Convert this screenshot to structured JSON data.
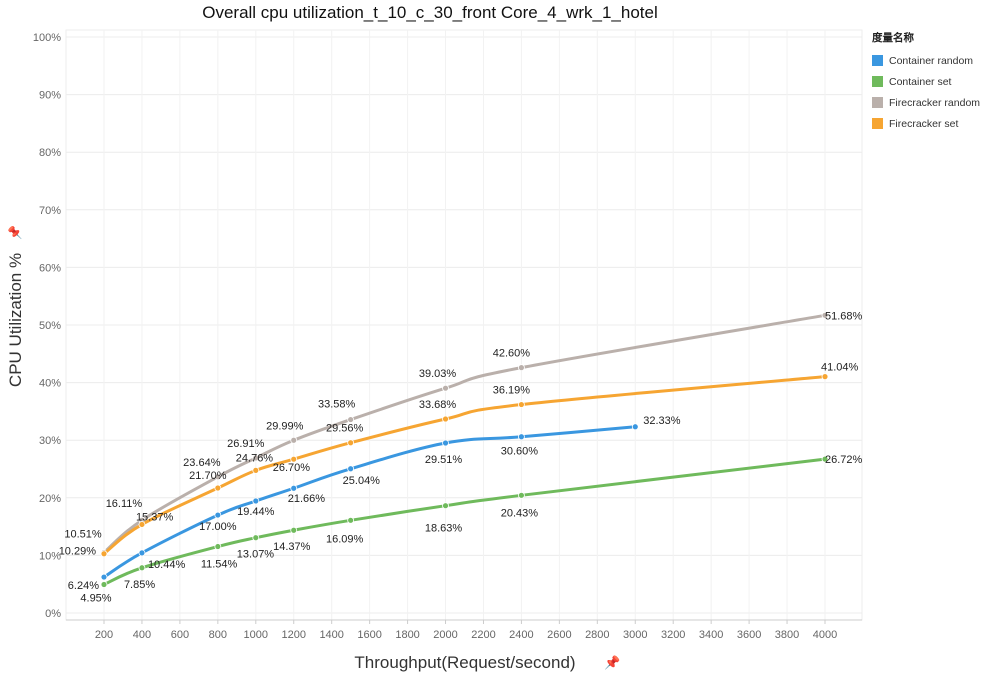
{
  "chart_data": {
    "type": "line",
    "title": "Overall cpu utilization_t_10_c_30_front Core_4_wrk_1_hotel",
    "xlabel": "Throughput(Request/second)",
    "ylabel": "CPU Utilization %",
    "xlim": [
      0,
      4200
    ],
    "ylim": [
      0,
      100
    ],
    "x_ticks": [
      "200",
      "400",
      "600",
      "800",
      "1000",
      "1200",
      "1400",
      "1600",
      "1800",
      "2000",
      "2200",
      "2400",
      "2600",
      "2800",
      "3000",
      "3200",
      "3400",
      "3600",
      "3800",
      "4000"
    ],
    "y_ticks": [
      "0%",
      "10%",
      "20%",
      "30%",
      "40%",
      "50%",
      "60%",
      "70%",
      "80%",
      "90%",
      "100%"
    ],
    "grid": true,
    "legend_position": "top-right",
    "legend_title": "度量名称",
    "series": [
      {
        "name": "Container random",
        "color": "#3a97e0",
        "x": [
          200,
          400,
          800,
          1000,
          1200,
          1500,
          2000,
          2400,
          3000
        ],
        "y": [
          6.24,
          10.44,
          17.0,
          19.44,
          21.66,
          25.04,
          29.51,
          30.6,
          32.33
        ],
        "labels": [
          "6.24%",
          "10.44%",
          "17.00%",
          "19.44%",
          "21.66%",
          "25.04%",
          "29.51%",
          "30.60%",
          "32.33%"
        ]
      },
      {
        "name": "Container set",
        "color": "#6fba5c",
        "x": [
          200,
          400,
          800,
          1000,
          1200,
          1500,
          2000,
          2400,
          4000
        ],
        "y": [
          4.95,
          7.85,
          11.54,
          13.07,
          14.37,
          16.09,
          18.63,
          20.43,
          26.72
        ],
        "labels": [
          "4.95%",
          "7.85%",
          "11.54%",
          "13.07%",
          "14.37%",
          "16.09%",
          "18.63%",
          "20.43%",
          "26.72%"
        ]
      },
      {
        "name": "Firecracker random",
        "color": "#bab0ab",
        "x": [
          200,
          400,
          800,
          1000,
          1200,
          1500,
          2000,
          2400,
          4000
        ],
        "y": [
          10.51,
          16.11,
          23.64,
          26.91,
          29.99,
          33.58,
          39.03,
          42.6,
          51.68
        ],
        "labels": [
          "10.51%",
          "16.11%",
          "23.64%",
          "26.91%",
          "29.99%",
          "33.58%",
          "39.03%",
          "42.60%",
          "51.68%"
        ]
      },
      {
        "name": "Firecracker set",
        "color": "#f6a532",
        "x": [
          200,
          400,
          800,
          1000,
          1200,
          1500,
          2000,
          2400,
          4000
        ],
        "y": [
          10.29,
          15.37,
          21.7,
          24.76,
          26.7,
          29.56,
          33.68,
          36.19,
          41.04
        ],
        "labels": [
          "10.29%",
          "15.37%",
          "21.70%",
          "24.76%",
          "26.70%",
          "29.56%",
          "33.68%",
          "36.19%",
          "41.04%"
        ]
      }
    ]
  }
}
